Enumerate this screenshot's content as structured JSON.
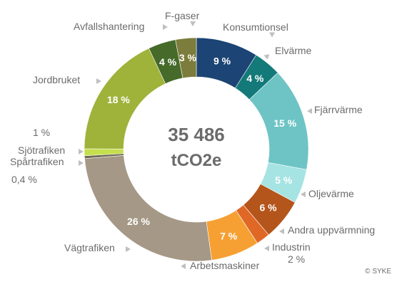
{
  "chart_data": {
    "type": "pie",
    "variant": "donut",
    "total_value": "35 486",
    "total_unit": "tCO2e",
    "slices": [
      {
        "label": "Konsumtionsel",
        "value": 9,
        "display": "9 %",
        "color": "#1c4474"
      },
      {
        "label": "Elvärme",
        "value": 4,
        "display": "4 %",
        "color": "#137a79"
      },
      {
        "label": "Fjärrvärme",
        "value": 15,
        "display": "15 %",
        "color": "#6ec4c4"
      },
      {
        "label": "Oljevärme",
        "value": 5,
        "display": "5 %",
        "color": "#a6e3e3"
      },
      {
        "label": "Andra uppvärmning",
        "value": 6,
        "display": "6 %",
        "color": "#b4551c"
      },
      {
        "label": "Industrin",
        "value": 2,
        "display": "2 %",
        "color": "#e06826"
      },
      {
        "label": "Arbetsmaskiner",
        "value": 7,
        "display": "7 %",
        "color": "#f6a033"
      },
      {
        "label": "Vägtrafiken",
        "value": 26,
        "display": "26 %",
        "color": "#a59886"
      },
      {
        "label": "Spårtrafiken",
        "value": 0.4,
        "display": "0,4 %",
        "color": "#6d6a52"
      },
      {
        "label": "Sjötrafiken",
        "value": 1,
        "display": "1 %",
        "color": "#c5df4e"
      },
      {
        "label": "Jordbruket",
        "value": 18,
        "display": "18 %",
        "color": "#9fb23a"
      },
      {
        "label": "Avfallshantering",
        "value": 4,
        "display": "4 %",
        "color": "#456a2a"
      },
      {
        "label": "F-gaser",
        "value": 3,
        "display": "3 %",
        "color": "#7c7c3c"
      }
    ]
  },
  "credit": "© SYKE"
}
